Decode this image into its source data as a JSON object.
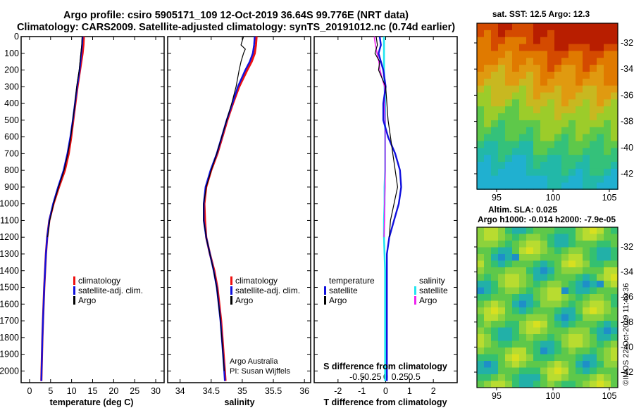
{
  "title_line1": "Argo profile: csiro 5905171_109 12-Oct-2019 36.64S 99.776E (NRT data)",
  "title_line2": "Climatology: CARS2009. Satellite-adjusted climatology: synTS_20191012.nc (0.74d earlier)",
  "colors": {
    "climatology": "#ee1111",
    "satellite": "#1111dd",
    "argo": "#000000",
    "salinity_sat": "#22e5f0",
    "salinity_argo": "#ee22ee"
  },
  "chart_data": [
    {
      "type": "line",
      "name": "temperature-panel",
      "xlabel": "temperature (deg C)",
      "ylabel": "",
      "xlim": [
        -2,
        32
      ],
      "ylim": [
        2070,
        0
      ],
      "xticks": [
        0,
        5,
        10,
        15,
        20,
        25,
        30
      ],
      "yticks": [
        0,
        100,
        200,
        300,
        400,
        500,
        600,
        700,
        800,
        900,
        1000,
        1100,
        1200,
        1300,
        1400,
        1500,
        1600,
        1700,
        1800,
        1900,
        2000
      ],
      "legend": [
        "climatology",
        "satellite-adj. clim.",
        "Argo"
      ],
      "series": [
        {
          "name": "climatology",
          "depth": [
            0,
            50,
            100,
            150,
            200,
            250,
            300,
            400,
            500,
            600,
            700,
            800,
            900,
            1000,
            1100,
            1200,
            1300,
            1400,
            1500,
            1600,
            1700,
            1800,
            1900,
            2000,
            2060
          ],
          "values": [
            12.9,
            12.8,
            12.6,
            12.3,
            12.0,
            11.7,
            11.4,
            10.9,
            10.4,
            9.9,
            9.3,
            8.4,
            7.0,
            5.7,
            4.7,
            4.2,
            3.9,
            3.7,
            3.5,
            3.35,
            3.2,
            3.05,
            2.95,
            2.85,
            2.8
          ]
        },
        {
          "name": "satellite-adj. clim.",
          "depth": [
            0,
            50,
            100,
            150,
            200,
            250,
            300,
            400,
            500,
            600,
            700,
            800,
            900,
            1000,
            1100,
            1200,
            1300,
            1400,
            1500,
            1600,
            1700,
            1800,
            1900,
            2000,
            2060
          ],
          "values": [
            12.6,
            12.5,
            12.3,
            12.1,
            11.9,
            11.6,
            11.3,
            10.8,
            10.3,
            9.7,
            9.0,
            8.1,
            6.8,
            5.6,
            4.7,
            4.2,
            3.9,
            3.7,
            3.5,
            3.35,
            3.2,
            3.05,
            2.95,
            2.85,
            2.8
          ]
        },
        {
          "name": "Argo",
          "depth": [
            0,
            50,
            100,
            150,
            200,
            250,
            300,
            400,
            500,
            600,
            700,
            800,
            900,
            1000,
            1100,
            1200
          ],
          "values": [
            12.5,
            12.4,
            12.2,
            12.0,
            11.8,
            11.5,
            11.2,
            10.8,
            10.3,
            9.8,
            9.1,
            8.2,
            6.9,
            5.7,
            4.8,
            4.3
          ]
        }
      ]
    },
    {
      "type": "line",
      "name": "salinity-panel",
      "xlabel": "salinity",
      "xlim": [
        33.8,
        36.1
      ],
      "ylim": [
        2070,
        0
      ],
      "xticks": [
        34,
        34.5,
        35,
        35.5,
        36
      ],
      "legend": [
        "climatology",
        "satellite-adj. clim.",
        "Argo"
      ],
      "annotation": [
        "Argo Australia",
        "PI: Susan Wijffels"
      ],
      "series": [
        {
          "name": "climatology",
          "depth": [
            0,
            50,
            100,
            150,
            200,
            300,
            400,
            500,
            600,
            700,
            800,
            900,
            1000,
            1100,
            1200,
            1300,
            1400,
            1500,
            1600,
            1700,
            1800,
            1900,
            2000,
            2060
          ],
          "values": [
            35.23,
            35.22,
            35.2,
            35.15,
            35.08,
            34.95,
            34.85,
            34.76,
            34.68,
            34.6,
            34.5,
            34.42,
            34.39,
            34.4,
            34.42,
            34.48,
            34.55,
            34.6,
            34.63,
            34.66,
            34.68,
            34.7,
            34.72,
            34.73
          ]
        },
        {
          "name": "satellite-adj. clim.",
          "depth": [
            0,
            50,
            100,
            150,
            200,
            300,
            400,
            500,
            600,
            700,
            800,
            900,
            1000,
            1100,
            1200,
            1300,
            1400,
            1500,
            1600,
            1700,
            1800,
            1900,
            2000,
            2060
          ],
          "values": [
            35.2,
            35.19,
            35.17,
            35.12,
            35.05,
            34.93,
            34.84,
            34.75,
            34.67,
            34.59,
            34.49,
            34.41,
            34.38,
            34.38,
            34.42,
            34.48,
            34.54,
            34.59,
            34.62,
            34.65,
            34.67,
            34.69,
            34.71,
            34.72
          ]
        },
        {
          "name": "Argo",
          "depth": [
            0,
            25,
            50,
            75,
            100,
            150,
            200,
            300,
            400,
            500,
            600,
            700,
            800,
            900,
            1000,
            1100,
            1200,
            1300,
            1400,
            1500,
            1600,
            1700,
            1800,
            1900,
            2000
          ],
          "values": [
            35.02,
            35.0,
            34.98,
            35.05,
            35.02,
            34.98,
            34.95,
            34.9,
            34.83,
            34.75,
            34.67,
            34.59,
            34.5,
            34.42,
            34.38,
            34.38,
            34.42,
            34.48,
            34.54,
            34.59,
            34.62,
            34.65,
            34.67,
            34.69,
            34.71
          ]
        }
      ]
    },
    {
      "type": "line",
      "name": "difference-panel",
      "xlabel": "T difference from climatology",
      "top_xlabel": "S difference from climatology",
      "xlim": [
        -3,
        3
      ],
      "ylim": [
        2070,
        0
      ],
      "xticks": [
        -2,
        -1,
        0,
        1,
        2
      ],
      "top_xticks": [
        "-0.5",
        "-0.25",
        "0",
        "0.25",
        "0.5"
      ],
      "legend_titles": [
        "temperature",
        "salinity"
      ],
      "legend_temperature": [
        "satellite",
        "Argo"
      ],
      "legend_salinity": [
        "satellite",
        "Argo"
      ],
      "series": [
        {
          "name": "T satellite",
          "depth": [
            0,
            50,
            100,
            150,
            200,
            250,
            300,
            400,
            500,
            600,
            700,
            800,
            900,
            1000,
            1100,
            1200,
            1300,
            1400,
            1500,
            1600,
            1700,
            1800,
            1900,
            2000,
            2060
          ],
          "values": [
            -0.25,
            -0.2,
            -0.3,
            -0.2,
            -0.1,
            -0.05,
            0.0,
            -0.1,
            -0.1,
            0.1,
            0.4,
            0.6,
            0.65,
            0.55,
            0.35,
            0.15,
            0.05,
            0.05,
            0.05,
            0.05,
            0.05,
            0.05,
            0.05,
            0.05,
            0.05
          ]
        },
        {
          "name": "T Argo",
          "depth": [
            0,
            50,
            100,
            150,
            200,
            250,
            300,
            400,
            500,
            600,
            700,
            800,
            900,
            1000,
            1100,
            1200
          ],
          "values": [
            -0.4,
            -0.35,
            -0.45,
            -0.25,
            -0.3,
            -0.15,
            0.0,
            0.05,
            0.1,
            0.2,
            0.3,
            0.4,
            0.5,
            0.35,
            0.2,
            0.15
          ]
        },
        {
          "name": "S satellite",
          "depth": [
            0,
            100,
            200,
            300,
            400,
            500,
            600,
            700,
            800,
            900,
            1000,
            1100,
            1200,
            1300,
            1400,
            1500,
            1600,
            1700,
            1800,
            1900,
            2000,
            2060
          ],
          "values": [
            -0.03,
            -0.03,
            -0.03,
            -0.02,
            -0.01,
            -0.01,
            -0.01,
            -0.01,
            -0.01,
            -0.02,
            -0.02,
            -0.03,
            -0.03,
            -0.02,
            -0.01,
            -0.01,
            -0.01,
            -0.01,
            -0.01,
            -0.01,
            -0.01,
            -0.01
          ]
        },
        {
          "name": "S Argo",
          "depth": [
            0,
            50,
            100,
            150,
            200,
            250,
            300,
            400,
            500,
            600,
            700,
            800,
            900,
            1000,
            1100,
            1200
          ],
          "values": [
            -0.2,
            -0.18,
            -0.15,
            -0.12,
            -0.1,
            -0.06,
            -0.02,
            -0.02,
            -0.01,
            -0.01,
            -0.01,
            -0.01,
            -0.01,
            -0.02,
            -0.02,
            -0.03
          ]
        }
      ]
    },
    {
      "type": "heatmap",
      "name": "sst-map",
      "title": "sat. SST: 12.5 Argo: 12.3",
      "xticks": [
        "95",
        "100",
        "105"
      ],
      "yticks": [
        "-32",
        "-34",
        "-36",
        "-38",
        "-40",
        "-42"
      ]
    },
    {
      "type": "heatmap",
      "name": "sla-map",
      "title_line1": "Altim. SLA: 0.025",
      "title_line2": "Argo h1000: -0.014 h2000: -7.9e-05",
      "xticks": [
        "95",
        "100",
        "105"
      ],
      "yticks": [
        "-32",
        "-34",
        "-36",
        "-38",
        "-40",
        "-42"
      ]
    }
  ],
  "footer": "©IMOS 22-Oct-2019 11:40:36"
}
